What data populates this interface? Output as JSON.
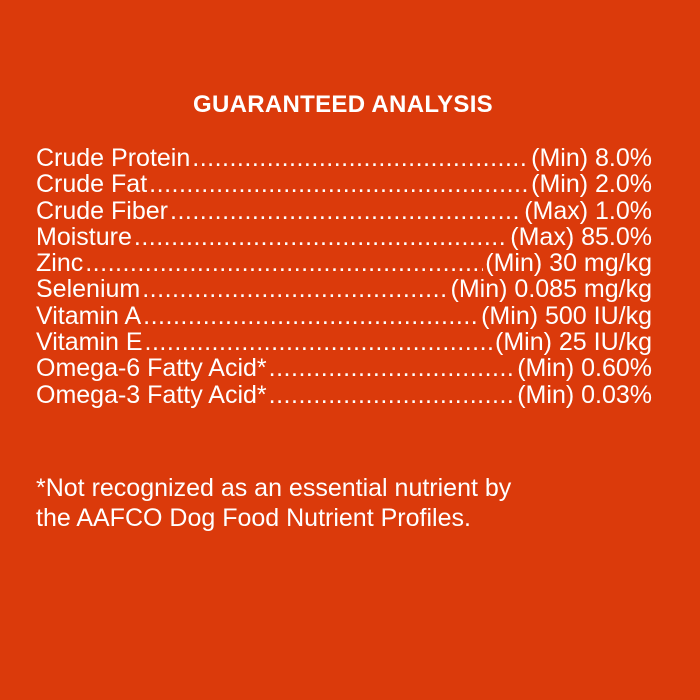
{
  "title": "GUARANTEED ANALYSIS",
  "rows": [
    {
      "name": "Crude Protein",
      "value": "(Min) 8.0%"
    },
    {
      "name": "Crude Fat",
      "value": "(Min) 2.0%"
    },
    {
      "name": "Crude Fiber",
      "value": "(Max) 1.0%"
    },
    {
      "name": "Moisture",
      "value": "(Max) 85.0%"
    },
    {
      "name": "Zinc",
      "value": "(Min) 30 mg/kg"
    },
    {
      "name": "Selenium",
      "value": "(Min) 0.085 mg/kg"
    },
    {
      "name": "Vitamin A",
      "value": "(Min) 500 IU/kg"
    },
    {
      "name": "Vitamin E",
      "value": "(Min) 25 IU/kg"
    },
    {
      "name": "Omega-6 Fatty Acid*",
      "value": "(Min) 0.60%"
    },
    {
      "name": "Omega-3 Fatty Acid*",
      "value": "(Min) 0.03%"
    }
  ],
  "footnote": {
    "line1": "*Not recognized as an essential nutrient by",
    "line2": "the AAFCO Dog Food Nutrient Profiles."
  },
  "colors": {
    "background": "#db3a0b",
    "text": "#ffffff"
  }
}
